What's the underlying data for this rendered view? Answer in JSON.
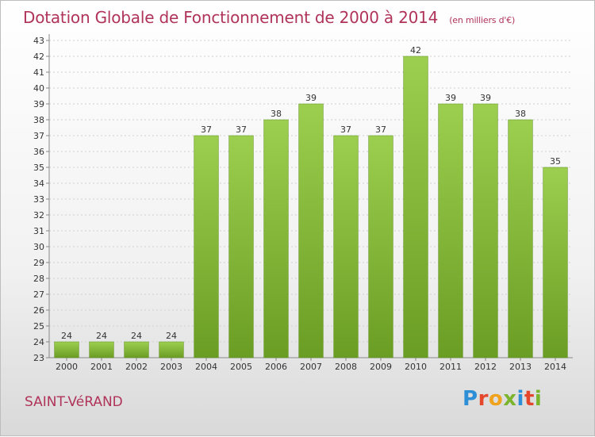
{
  "header": {
    "title": "Dotation Globale de Fonctionnement de 2000 à 2014",
    "subtitle": "(en milliers d'€)"
  },
  "footer": {
    "commune": "SAINT-VéRAND",
    "logo": [
      "P",
      "r",
      "o",
      "x",
      "i",
      "t",
      "i"
    ]
  },
  "colors": {
    "bar_fill_top": "#9ccf4f",
    "bar_fill_bottom": "#6a9d23",
    "title": "#b0335a",
    "grid": "#d0d0d0"
  },
  "chart_data": {
    "type": "bar",
    "categories": [
      "2000",
      "2001",
      "2002",
      "2003",
      "2004",
      "2005",
      "2006",
      "2007",
      "2008",
      "2009",
      "2010",
      "2011",
      "2012",
      "2013",
      "2014"
    ],
    "values": [
      24,
      24,
      24,
      24,
      37,
      37,
      38,
      39,
      37,
      37,
      42,
      39,
      39,
      38,
      35
    ],
    "ylim": [
      23,
      43
    ],
    "yticks": [
      23,
      24,
      25,
      26,
      27,
      28,
      29,
      30,
      31,
      32,
      33,
      34,
      35,
      36,
      37,
      38,
      39,
      40,
      41,
      42,
      43
    ],
    "grid": true,
    "data_labels": true,
    "title": "Dotation Globale de Fonctionnement de 2000 à 2014",
    "xlabel": "",
    "ylabel": ""
  }
}
